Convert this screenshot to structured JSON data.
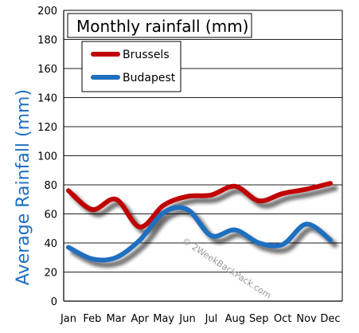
{
  "chart_data": {
    "type": "line",
    "title": "Monthly rainfall (mm)",
    "xlabel": "",
    "ylabel": "Average Rainfall (mm)",
    "categories": [
      "Jan",
      "Feb",
      "Mar",
      "Apr",
      "May",
      "Jun",
      "Jul",
      "Aug",
      "Sep",
      "Oct",
      "Nov",
      "Dec"
    ],
    "ylim": [
      0,
      200
    ],
    "yticks": [
      0,
      20,
      40,
      60,
      80,
      100,
      120,
      140,
      160,
      180,
      200
    ],
    "grid": true,
    "legend_position": "top-left",
    "series": [
      {
        "name": "Brussels",
        "color": "#c00000",
        "values": [
          76,
          63,
          70,
          51,
          66,
          72,
          73,
          79,
          69,
          74,
          77,
          81
        ]
      },
      {
        "name": "Budapest",
        "color": "#1f6fbf",
        "values": [
          37,
          29,
          30,
          42,
          61,
          63,
          45,
          49,
          40,
          39,
          53,
          42
        ]
      }
    ],
    "watermark": "© 2WeekBackPack.com"
  }
}
